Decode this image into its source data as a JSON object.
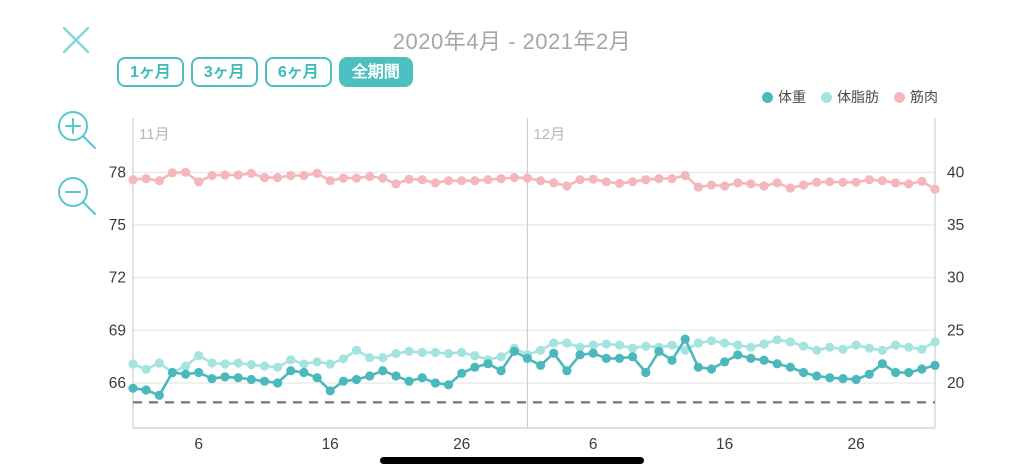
{
  "header": {
    "title": "2020年4月 - 2021年2月"
  },
  "range_buttons": [
    {
      "label": "1ヶ月",
      "selected": false
    },
    {
      "label": "3ヶ月",
      "selected": false
    },
    {
      "label": "6ヶ月",
      "selected": false
    },
    {
      "label": "全期間",
      "selected": true
    }
  ],
  "icons": {
    "close": "x-cross",
    "zoom_in": "magnifier-plus",
    "zoom_out": "magnifier-minus"
  },
  "legend": [
    {
      "label": "体重",
      "color": "#4bb8bc"
    },
    {
      "label": "体脂肪",
      "color": "#a5e3e0"
    },
    {
      "label": "筋肉",
      "color": "#f4b8bc"
    }
  ],
  "colors": {
    "accent": "#4cc0c0",
    "close_icon": "#7fd6d9",
    "zoom_icon": "#55c8cc",
    "weight": "#4bb8bc",
    "body_fat": "#a5e3e0",
    "muscle": "#f4b8bc",
    "grid": "#e7e7e7",
    "axis": "#cfcfcf",
    "goal_line": "#7d7d7d",
    "tick_text": "#3b3b3b",
    "month_text": "#b8b8b8",
    "title_text": "#a6a6a6"
  },
  "chart_data": {
    "type": "line",
    "grid": true,
    "legend_position": "top-right",
    "months": [
      {
        "label": "11月",
        "start_index": 0
      },
      {
        "label": "12月",
        "start_index": 30
      }
    ],
    "x_ticks": [
      {
        "label": "6",
        "index": 5
      },
      {
        "label": "16",
        "index": 15
      },
      {
        "label": "26",
        "index": 25
      },
      {
        "label": "6",
        "index": 35
      },
      {
        "label": "16",
        "index": 45
      },
      {
        "label": "26",
        "index": 55
      }
    ],
    "left_axis": {
      "ticks": [
        66,
        69,
        72,
        75,
        78
      ]
    },
    "right_axis": {
      "ticks": [
        20,
        25,
        30,
        35,
        40
      ]
    },
    "goal_line": {
      "axis": "left",
      "value": 64.9,
      "style": "dashed"
    },
    "series": [
      {
        "name": "筋肉",
        "axis": "right",
        "color": "#f4b8bc",
        "values": [
          39.3,
          39.4,
          39.2,
          39.95,
          40.0,
          39.1,
          39.7,
          39.75,
          39.75,
          39.9,
          39.5,
          39.5,
          39.7,
          39.7,
          39.9,
          39.2,
          39.45,
          39.45,
          39.6,
          39.45,
          38.9,
          39.35,
          39.3,
          39.0,
          39.2,
          39.2,
          39.2,
          39.3,
          39.4,
          39.5,
          39.45,
          39.2,
          39.0,
          38.7,
          39.3,
          39.35,
          39.1,
          38.95,
          39.1,
          39.3,
          39.4,
          39.4,
          39.7,
          38.6,
          38.8,
          38.7,
          39.0,
          38.9,
          38.7,
          39.0,
          38.5,
          38.8,
          39.05,
          39.1,
          39.05,
          39.05,
          39.3,
          39.2,
          39.0,
          38.9,
          39.15,
          38.4
        ]
      },
      {
        "name": "体脂肪",
        "axis": "right",
        "color": "#a5e3e0",
        "values": [
          21.8,
          21.3,
          21.9,
          21.0,
          21.6,
          22.6,
          21.9,
          21.8,
          21.9,
          21.75,
          21.6,
          21.5,
          22.2,
          21.8,
          22.0,
          21.8,
          22.3,
          23.1,
          22.4,
          22.4,
          22.8,
          23.0,
          22.9,
          22.9,
          22.8,
          22.9,
          22.6,
          22.2,
          22.5,
          23.3,
          22.7,
          23.1,
          23.8,
          23.8,
          23.4,
          23.6,
          23.7,
          23.6,
          23.3,
          23.5,
          23.4,
          23.6,
          23.1,
          23.8,
          24.0,
          23.8,
          23.6,
          23.4,
          23.7,
          24.1,
          23.9,
          23.5,
          23.1,
          23.4,
          23.2,
          23.6,
          23.3,
          23.1,
          23.6,
          23.4,
          23.2,
          23.9
        ]
      },
      {
        "name": "体重",
        "axis": "left",
        "color": "#4bb8bc",
        "values": [
          65.7,
          65.6,
          65.3,
          66.6,
          66.5,
          66.6,
          66.25,
          66.35,
          66.3,
          66.2,
          66.1,
          66.0,
          66.7,
          66.6,
          66.3,
          65.55,
          66.1,
          66.2,
          66.4,
          66.7,
          66.4,
          66.1,
          66.3,
          66.0,
          65.9,
          66.55,
          66.9,
          67.1,
          66.7,
          67.8,
          67.4,
          67.0,
          67.7,
          66.7,
          67.6,
          67.7,
          67.4,
          67.4,
          67.5,
          66.6,
          67.8,
          67.3,
          68.5,
          66.9,
          66.8,
          67.2,
          67.6,
          67.4,
          67.3,
          67.1,
          66.9,
          66.6,
          66.4,
          66.3,
          66.25,
          66.2,
          66.5,
          67.1,
          66.6,
          66.6,
          66.8,
          67.0
        ]
      }
    ]
  },
  "os_ui": {
    "home_indicator": true
  }
}
